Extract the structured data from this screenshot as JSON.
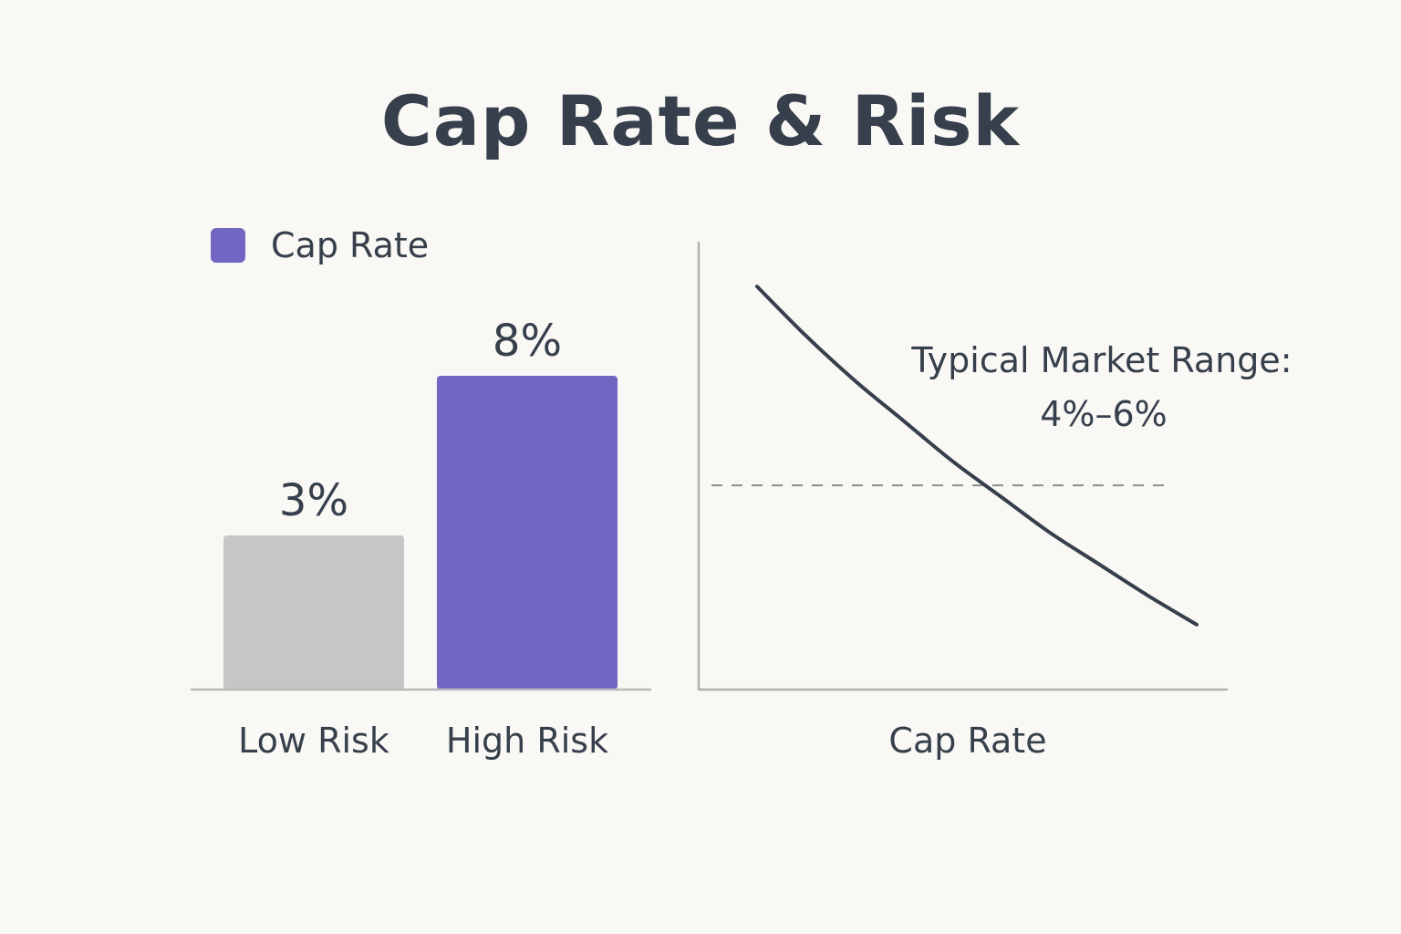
{
  "title": "Cap Rate & Risk",
  "chart_data": [
    {
      "type": "bar",
      "legend": {
        "label": "Cap Rate",
        "position": "top-left"
      },
      "categories": [
        "Low Risk",
        "High Risk"
      ],
      "values": [
        3,
        8
      ],
      "data_labels": [
        "3%",
        "8%"
      ],
      "colors": [
        "#c6c6c6",
        "#7166c2"
      ],
      "legend_color": "#7166c2",
      "ylim": [
        0,
        10
      ],
      "grid": false
    },
    {
      "type": "line",
      "xlabel": "Cap Rate",
      "ylabel": "",
      "x": [
        1,
        2,
        3,
        4,
        5,
        6,
        7,
        8,
        9,
        10
      ],
      "y": [
        9.0,
        7.9,
        6.9,
        6.0,
        5.1,
        4.3,
        3.5,
        2.8,
        2.1,
        1.45
      ],
      "xlim": [
        0,
        11.5
      ],
      "ylim": [
        0,
        10
      ],
      "reference_line": {
        "y": 4.56,
        "style": "dashed"
      },
      "annotation": {
        "line1": "Typical Market Range:",
        "line2": "4%–6%"
      },
      "line_color": "#363f4b",
      "grid": false
    }
  ]
}
